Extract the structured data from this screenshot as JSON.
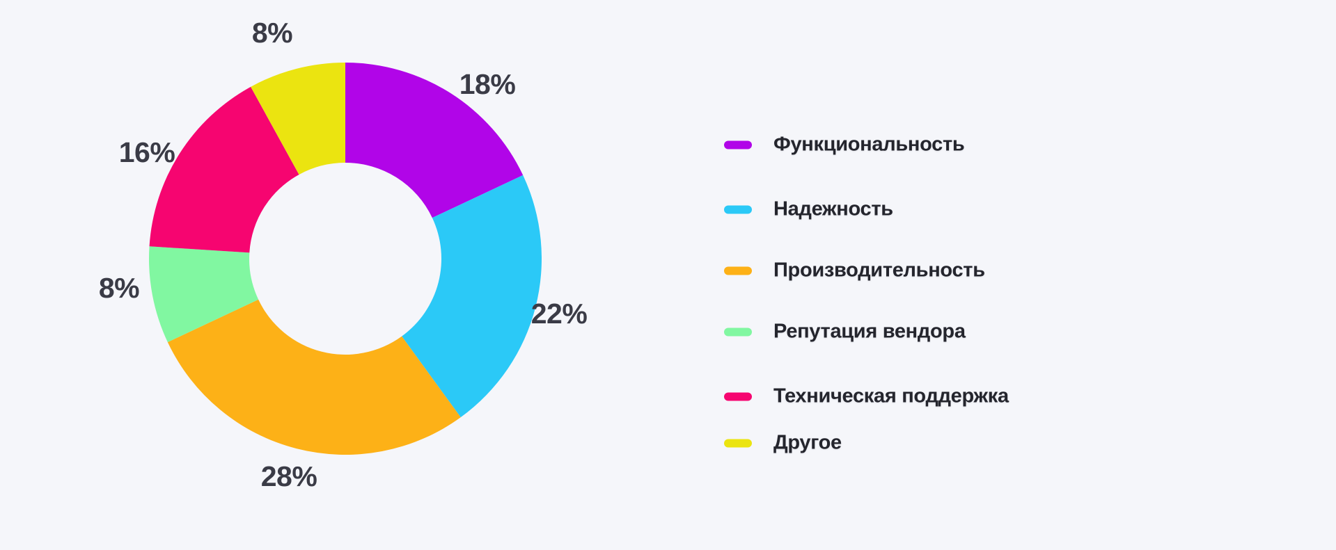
{
  "background_color": "#F5F6FA",
  "chart_data": {
    "type": "pie",
    "subtype": "donut",
    "title": "",
    "unit": "%",
    "categories": [
      "Функциональность",
      "Надежность",
      "Производительность",
      "Репутация вендора",
      "Техническая поддержка",
      "Другое"
    ],
    "values": [
      18,
      22,
      28,
      8,
      16,
      8
    ],
    "display_labels": [
      "18%",
      "22%",
      "28%",
      "8%",
      "16%",
      "8%"
    ],
    "colors": [
      "#B105E8",
      "#2BC9F7",
      "#FDB117",
      "#81F7A1",
      "#F60570",
      "#EBE410"
    ],
    "legend_position": "right",
    "start_angle_deg": 0,
    "direction": "clockwise",
    "inner_radius_ratio": 0.49,
    "grid": false,
    "label_color": "#3A3B46",
    "legend_text_color": "#24252D"
  }
}
